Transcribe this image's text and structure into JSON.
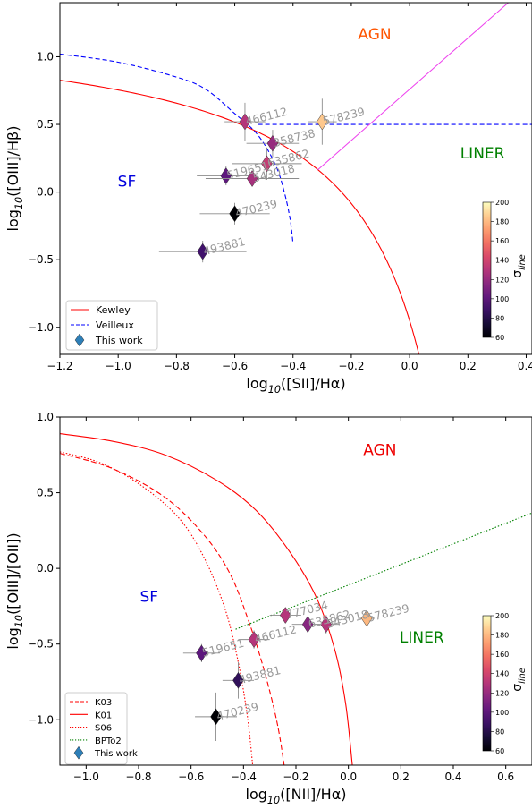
{
  "chart_data": [
    {
      "type": "scatter",
      "xlabel": "log$_{10}$([SII]/H$\\alpha$)",
      "ylabel": "log$_{10}$([OIII]/H$\\beta$)",
      "xlim": [
        -1.2,
        0.42
      ],
      "ylim": [
        -1.2,
        1.4
      ],
      "xticks": [
        -1.2,
        -1.0,
        -0.8,
        -0.6,
        -0.4,
        -0.2,
        0.0,
        0.2,
        0.4
      ],
      "xtick_labels": [
        "−1.2",
        "−1.0",
        "−0.8",
        "−0.6",
        "−0.4",
        "−0.2",
        "0.0",
        "0.2",
        "0.4"
      ],
      "yticks": [
        -1.0,
        -0.5,
        0.0,
        0.5,
        1.0
      ],
      "ytick_labels": [
        "−1.0",
        "−0.5",
        "0.0",
        "0.5",
        "1.0"
      ],
      "grid": false,
      "region_labels": [
        {
          "text": "AGN",
          "x": -0.12,
          "y": 1.13,
          "color": "#ff5500"
        },
        {
          "text": "LINER",
          "x": 0.25,
          "y": 0.25,
          "color": "#008000"
        },
        {
          "text": "SF",
          "x": -0.97,
          "y": 0.04,
          "color": "#0000dd"
        }
      ],
      "legend": {
        "position": "lower-left",
        "entries": [
          {
            "label": "Kewley",
            "style": "solid",
            "color": "#ff0000"
          },
          {
            "label": "Veilleux",
            "style": "dashed",
            "color": "#0000ff"
          },
          {
            "label": "This work",
            "style": "marker",
            "color": "#2d7fb8"
          }
        ]
      },
      "colorbar": {
        "label": "σ$_{line}$",
        "min": 60,
        "max": 200,
        "ticks": [
          60,
          80,
          100,
          120,
          140,
          160,
          180,
          200
        ],
        "colormap": "magma"
      },
      "lines": [
        {
          "name": "Kewley",
          "kind": "kewley_sii",
          "color": "#ff0000",
          "dash": "none"
        },
        {
          "name": "Veilleux",
          "kind": "veilleux_sii",
          "color": "#0000ff",
          "dash": "5,3"
        },
        {
          "name": "",
          "kind": "liner_sii",
          "color": "#ee44ee",
          "dash": "none"
        }
      ],
      "points": [
        {
          "id": "466112",
          "x": -0.565,
          "y": 0.52,
          "xerr": 0.07,
          "yerr": 0.14,
          "sigma": 130
        },
        {
          "id": "578239",
          "x": -0.3,
          "y": 0.52,
          "xerr": 0.05,
          "yerr": 0.17,
          "sigma": 185
        },
        {
          "id": "358738",
          "x": -0.47,
          "y": 0.36,
          "xerr": 0.09,
          "yerr": 0.1,
          "sigma": 120
        },
        {
          "id": "635862",
          "x": -0.49,
          "y": 0.21,
          "xerr": 0.12,
          "yerr": 0.12,
          "sigma": 135
        },
        {
          "id": "519651",
          "x": -0.63,
          "y": 0.12,
          "xerr": 0.1,
          "yerr": 0.07,
          "sigma": 100
        },
        {
          "id": "543018",
          "x": -0.54,
          "y": 0.1,
          "xerr": 0.16,
          "yerr": 0.06,
          "sigma": 125
        },
        {
          "id": "470239",
          "x": -0.6,
          "y": -0.16,
          "xerr": 0.12,
          "yerr": 0.08,
          "sigma": 60
        },
        {
          "id": "493881",
          "x": -0.71,
          "y": -0.44,
          "xerr": 0.15,
          "yerr": 0.08,
          "sigma": 90
        }
      ]
    },
    {
      "type": "scatter",
      "xlabel": "log$_{10}$([NII]/H$\\alpha$)",
      "ylabel": "log$_{10}$([OIII]/[OII])",
      "xlim": [
        -1.1,
        0.7
      ],
      "ylim": [
        -1.3,
        1.0
      ],
      "xticks": [
        -1.0,
        -0.8,
        -0.6,
        -0.4,
        -0.2,
        0.0,
        0.2,
        0.4,
        0.6
      ],
      "xtick_labels": [
        "−1.0",
        "−0.8",
        "−0.6",
        "−0.4",
        "−0.2",
        "0.0",
        "0.2",
        "0.4",
        "0.6"
      ],
      "yticks": [
        -1.0,
        -0.5,
        0.0,
        0.5,
        1.0
      ],
      "ytick_labels": [
        "−1.0",
        "−0.5",
        "0.0",
        "0.5",
        "1.0"
      ],
      "grid": false,
      "region_labels": [
        {
          "text": "AGN",
          "x": 0.12,
          "y": 0.75,
          "color": "#ee0000"
        },
        {
          "text": "LINER",
          "x": 0.28,
          "y": -0.49,
          "color": "#008000"
        },
        {
          "text": "SF",
          "x": -0.76,
          "y": -0.22,
          "color": "#0000dd"
        }
      ],
      "legend": {
        "position": "lower-left",
        "entries": [
          {
            "label": "K03",
            "style": "dashed",
            "color": "#ff0000"
          },
          {
            "label": "K01",
            "style": "solid",
            "color": "#ff0000"
          },
          {
            "label": "S06",
            "style": "dotted",
            "color": "#ff0000"
          },
          {
            "label": "BPTo2",
            "style": "dotted",
            "color": "#008000"
          },
          {
            "label": "This work",
            "style": "marker",
            "color": "#2d7fb8"
          }
        ]
      },
      "colorbar": {
        "label": "σ$_{line}$",
        "min": 60,
        "max": 200,
        "ticks": [
          60,
          80,
          100,
          120,
          140,
          160,
          180,
          200
        ],
        "colormap": "magma"
      },
      "lines": [
        {
          "name": "K03",
          "kind": "k03_nii",
          "color": "#ff0000",
          "dash": "6,3"
        },
        {
          "name": "K01",
          "kind": "k01_nii",
          "color": "#ff0000",
          "dash": "none"
        },
        {
          "name": "S06",
          "kind": "s06_nii",
          "color": "#ff0000",
          "dash": "1.5,2"
        },
        {
          "name": "BPTo2",
          "kind": "bpto2_nii",
          "color": "#008000",
          "dash": "1.5,2"
        }
      ],
      "points": [
        {
          "id": "777034",
          "x": -0.24,
          "y": -0.31,
          "xerr": 0.06,
          "yerr": 0.05,
          "sigma": 130
        },
        {
          "id": "635862",
          "x": -0.155,
          "y": -0.37,
          "xerr": 0.06,
          "yerr": 0.05,
          "sigma": 115
        },
        {
          "id": "543018",
          "x": -0.085,
          "y": -0.37,
          "xerr": 0.05,
          "yerr": 0.06,
          "sigma": 130
        },
        {
          "id": "578239",
          "x": 0.07,
          "y": -0.33,
          "xerr": 0.03,
          "yerr": 0.04,
          "sigma": 180
        },
        {
          "id": "466112",
          "x": -0.36,
          "y": -0.47,
          "xerr": 0.06,
          "yerr": 0.06,
          "sigma": 130
        },
        {
          "id": "519651",
          "x": -0.56,
          "y": -0.56,
          "xerr": 0.07,
          "yerr": 0.06,
          "sigma": 100
        },
        {
          "id": "493881",
          "x": -0.42,
          "y": -0.74,
          "xerr": 0.06,
          "yerr": 0.12,
          "sigma": 85
        },
        {
          "id": "470239",
          "x": -0.505,
          "y": -0.98,
          "xerr": 0.08,
          "yerr": 0.16,
          "sigma": 60
        }
      ]
    }
  ]
}
